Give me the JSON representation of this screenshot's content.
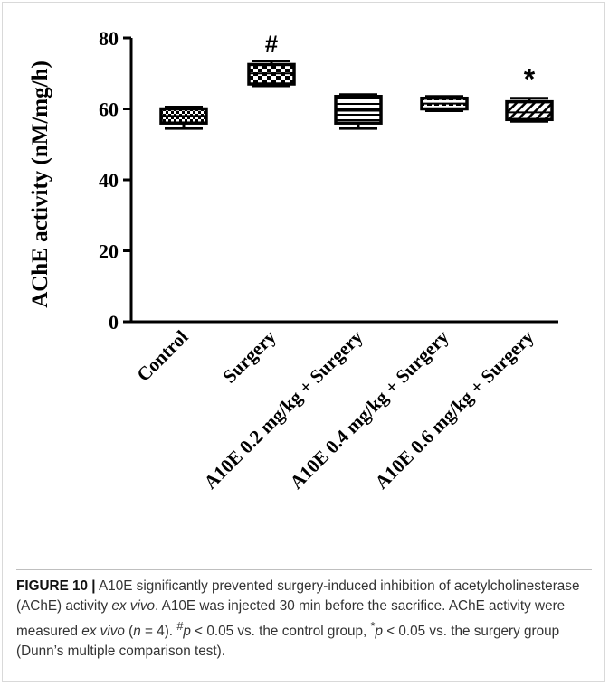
{
  "chart_data": {
    "type": "box",
    "ylabel": "AChE activity (nM/mg/h)",
    "xlabel": "",
    "ylim": [
      0,
      80
    ],
    "yticks": [
      0,
      20,
      40,
      60,
      80
    ],
    "categories": [
      "Control",
      "Surgery",
      "A10E 0.2 mg/kg + Surgery",
      "A10E 0.4 mg/kg + Surgery",
      "A10E 0.6 mg/kg + Surgery"
    ],
    "boxes": [
      {
        "category": "Control",
        "min": 54.5,
        "q1": 56,
        "median": 58,
        "q3": 60,
        "max": 60.5,
        "annotation": "",
        "pattern": "checker-small"
      },
      {
        "category": "Surgery",
        "min": 66.5,
        "q1": 67,
        "median": 70,
        "q3": 72.5,
        "max": 73.5,
        "annotation": "#",
        "pattern": "checker-large"
      },
      {
        "category": "A10E 0.2 mg/kg + Surgery",
        "min": 54.5,
        "q1": 56,
        "median": 59.5,
        "q3": 63.5,
        "max": 64,
        "annotation": "",
        "pattern": "horizontal-lines"
      },
      {
        "category": "A10E 0.4 mg/kg + Surgery",
        "min": 59.5,
        "q1": 60,
        "median": 61.5,
        "q3": 63,
        "max": 63.5,
        "annotation": "",
        "pattern": "dashes"
      },
      {
        "category": "A10E 0.6 mg/kg + Surgery",
        "min": 56.5,
        "q1": 57,
        "median": 59,
        "q3": 62,
        "max": 63,
        "annotation": "*",
        "pattern": "diagonal"
      }
    ]
  },
  "caption": {
    "label": "FIGURE 10 |",
    "text_1": " A10E significantly prevented surgery-induced inhibition of acetylcholinesterase (AChE) activity ",
    "em_1": "ex vivo",
    "text_2": ". A10E was injected 30 min before the sacrifice. AChE activity were measured ",
    "em_2": "ex vivo",
    "text_3": " (",
    "em_3": "n",
    "text_4": " = 4). ",
    "sup_1": "#",
    "em_4": "p",
    "text_5": " < 0.05 vs. the control group, ",
    "sup_2": "*",
    "em_5": "p",
    "text_6": " < 0.05 vs. the surgery group (Dunn’s multiple comparison test)."
  }
}
